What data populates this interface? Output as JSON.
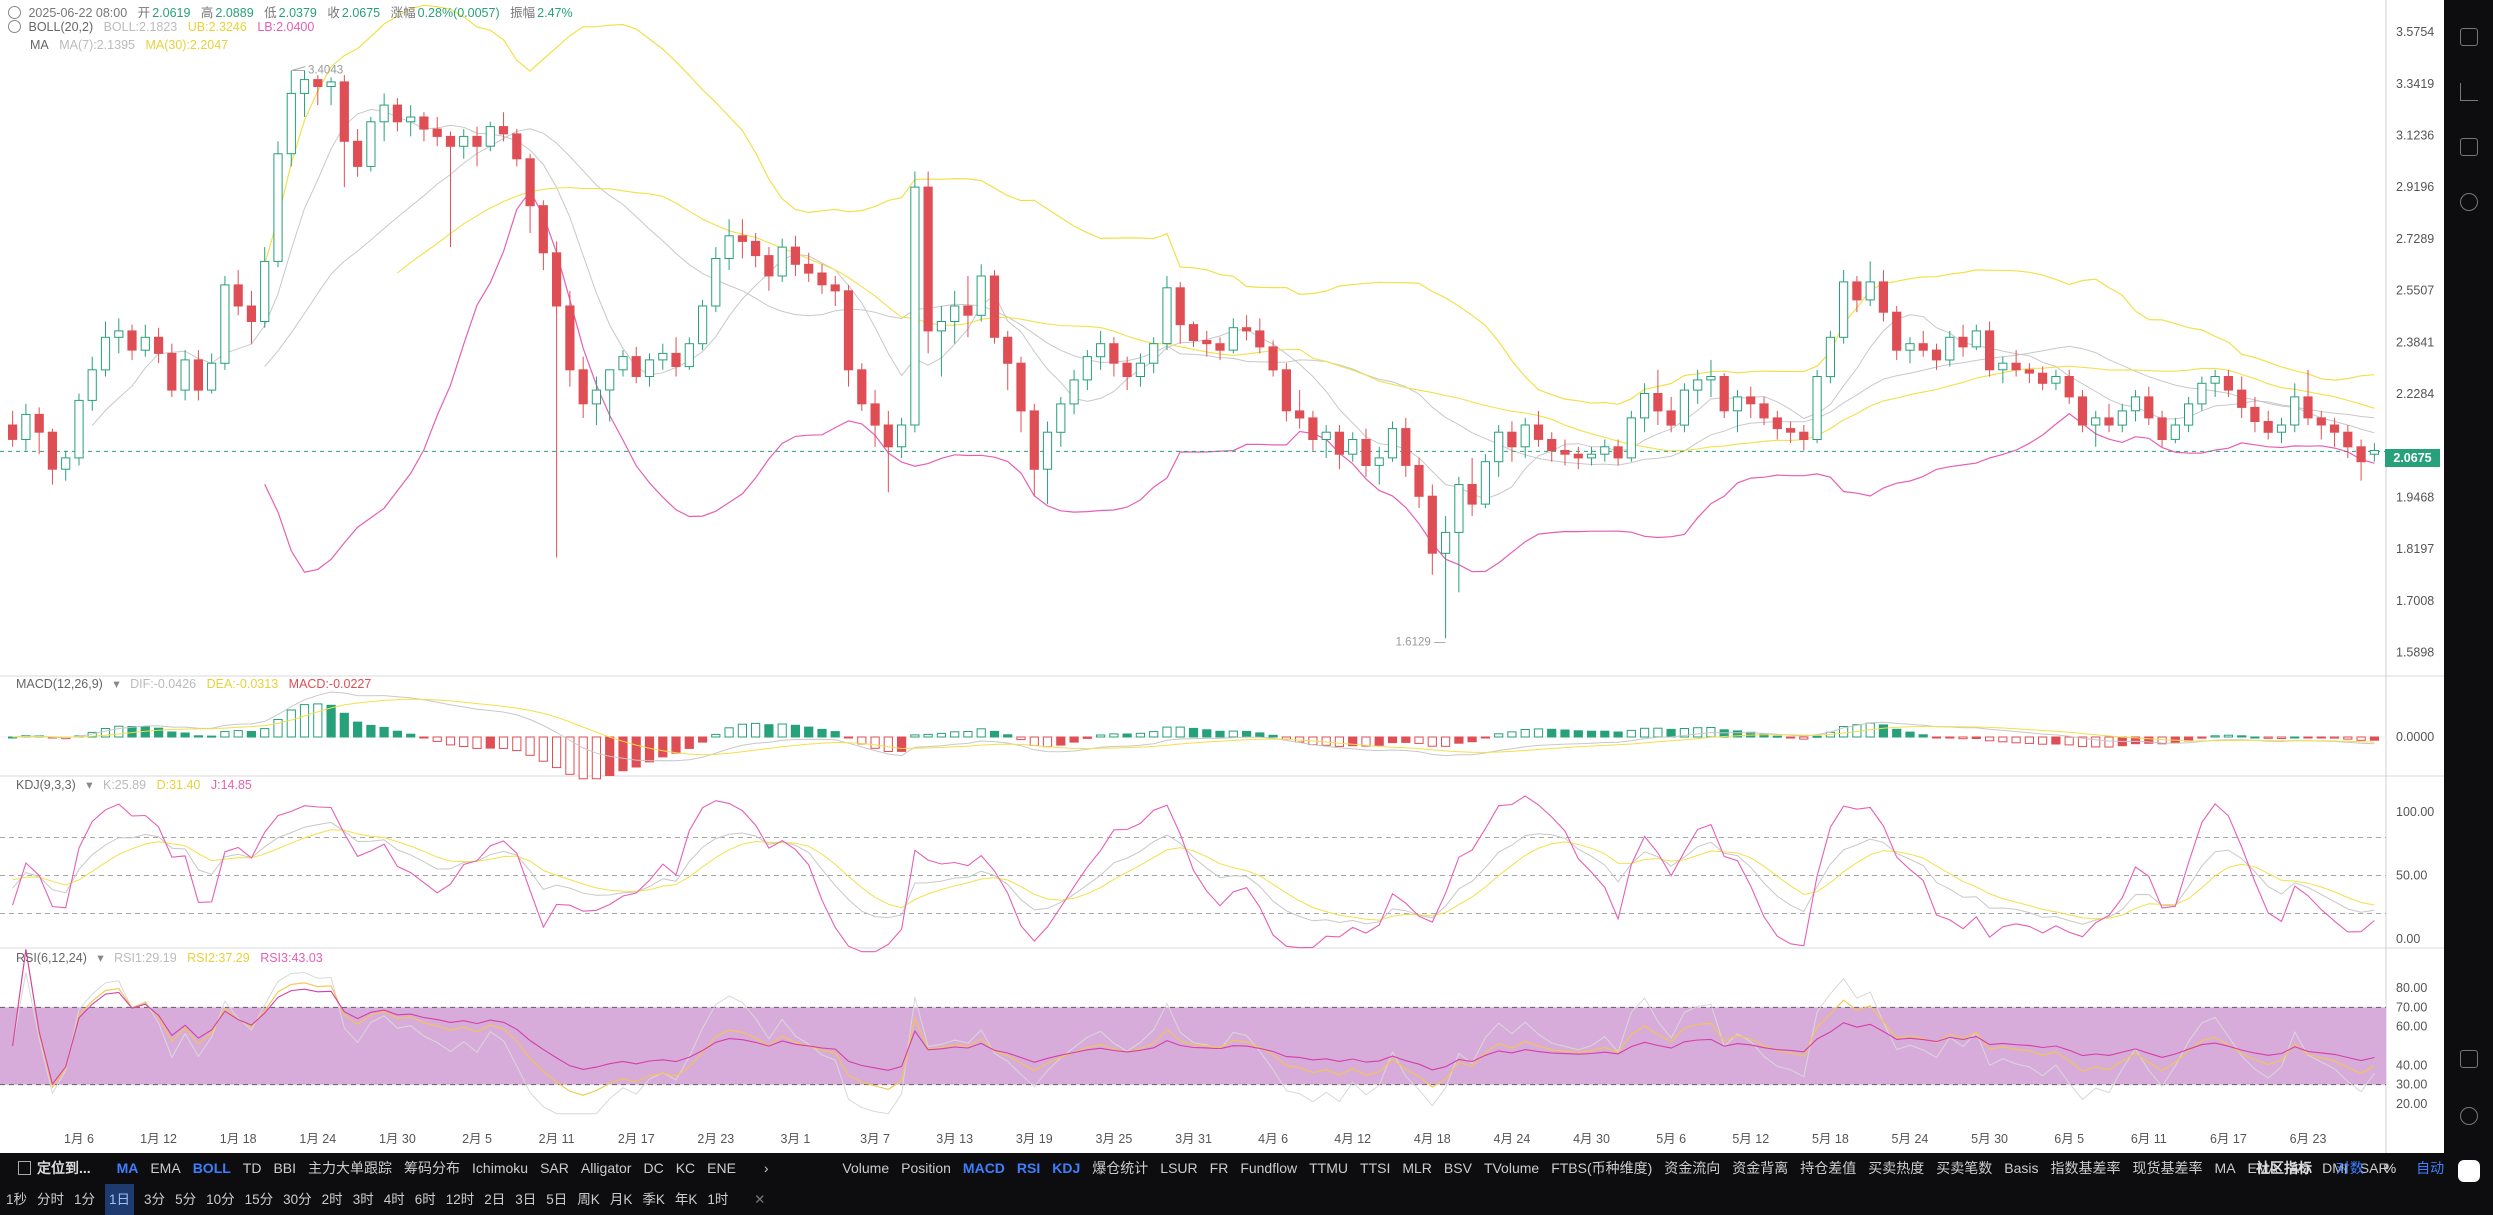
{
  "header": {
    "date": "2025-06-22 08:00",
    "open_label": "开",
    "open": "2.0619",
    "high_label": "高",
    "high": "2.0889",
    "low_label": "低",
    "low": "2.0379",
    "close_label": "收",
    "close": "2.0675",
    "change_label": "涨幅",
    "change": "0.28%(0.0057)",
    "amplitude_label": "振幅",
    "amplitude": "2.47%"
  },
  "indicators": {
    "boll": {
      "name": "BOLL(20,2)",
      "boll": "BOLL:2.1823",
      "ub": "UB:2.3246",
      "lb": "LB:2.0400"
    },
    "ma": {
      "name": "MA",
      "ma7": "MA(7):2.1395",
      "ma30": "MA(30):2.2047"
    },
    "macd": {
      "name": "MACD(12,26,9)",
      "dif": "DIF:-0.0426",
      "dea": "DEA:-0.0313",
      "macd": "MACD:-0.0227"
    },
    "kdj": {
      "name": "KDJ(9,3,3)",
      "k": "K:25.89",
      "d": "D:31.40",
      "j": "J:14.85"
    },
    "rsi": {
      "name": "RSI(6,12,24)",
      "rsi1": "RSI1:29.19",
      "rsi2": "RSI2:37.29",
      "rsi3": "RSI3:43.03"
    }
  },
  "colors": {
    "up": "#26a17a",
    "down": "#df4e54",
    "boll": "#c8c8c8",
    "ub": "#f2e04a",
    "lb": "#e65fb5",
    "ma7": "#c8c8c8",
    "ma30": "#f2e04a",
    "rsi_band": "#d6a8d8",
    "last_price": "#26a17a"
  },
  "price_axis": {
    "ticks": [
      "3.5754",
      "3.3419",
      "3.1236",
      "2.9196",
      "2.7289",
      "2.5507",
      "2.3841",
      "2.2284",
      "2.0675",
      "1.9468",
      "1.8197",
      "1.7008",
      "1.5898"
    ]
  },
  "last_price": "2.0675",
  "annotations": {
    "high": "3.4043",
    "low": "1.6129"
  },
  "macd_axis": [
    "0.0000"
  ],
  "kdj_axis": [
    "100.00",
    "50.00",
    "0.00"
  ],
  "rsi_axis": [
    "80.00",
    "70.00",
    "60.00",
    "40.00",
    "30.00",
    "20.00"
  ],
  "x_axis": [
    "1月 6",
    "1月 12",
    "1月 18",
    "1月 24",
    "1月 30",
    "2月 5",
    "2月 11",
    "2月 17",
    "2月 23",
    "3月 1",
    "3月 7",
    "3月 13",
    "3月 19",
    "3月 25",
    "3月 31",
    "4月 6",
    "4月 12",
    "4月 18",
    "4月 24",
    "4月 30",
    "5月 6",
    "5月 12",
    "5月 18",
    "5月 24",
    "5月 30",
    "6月 5",
    "6月 11",
    "6月 17",
    "6月 23"
  ],
  "indicator_bar": {
    "locate": "定位到...",
    "main": [
      "MA",
      "EMA",
      "BOLL",
      "TD",
      "BBI",
      "主力大单跟踪",
      "筹码分布",
      "Ichimoku",
      "SAR",
      "Alligator",
      "DC",
      "KC",
      "ENE"
    ],
    "sub": [
      "Volume",
      "Position",
      "MACD",
      "RSI",
      "KDJ",
      "爆仓统计",
      "LSUR",
      "FR",
      "Fundflow",
      "TTMU",
      "TTSI",
      "MLR",
      "BSV",
      "TVolume",
      "FTBS(币种维度)",
      "资金流向",
      "资金背离",
      "持仓差值",
      "买卖热度",
      "买卖笔数",
      "Basis",
      "指数基差率",
      "现货基差率",
      "MA",
      "EMA",
      "AO",
      "DMI",
      "SAR"
    ],
    "community": "社区指标",
    "log": "对数",
    "pct": "%",
    "auto": "自动"
  },
  "timeframes": [
    "1秒",
    "分时",
    "1分",
    "1日",
    "3分",
    "5分",
    "10分",
    "15分",
    "30分",
    "2时",
    "3时",
    "4时",
    "6时",
    "12时",
    "2日",
    "3日",
    "5日",
    "周K",
    "月K",
    "季K",
    "年K",
    "1时"
  ],
  "chart_data": {
    "type": "candlestick",
    "symbol_interval": "1D",
    "dates_start": "2025-01-01",
    "dates_end": "2025-06-22",
    "y_scale": "log",
    "ylim": [
      1.55,
      3.68
    ],
    "candles": [
      [
        2.14,
        2.18,
        2.08,
        2.1
      ],
      [
        2.1,
        2.2,
        2.07,
        2.17
      ],
      [
        2.17,
        2.19,
        2.06,
        2.12
      ],
      [
        2.12,
        2.13,
        1.98,
        2.02
      ],
      [
        2.02,
        2.07,
        1.99,
        2.05
      ],
      [
        2.05,
        2.23,
        2.03,
        2.21
      ],
      [
        2.21,
        2.34,
        2.18,
        2.3
      ],
      [
        2.3,
        2.45,
        2.28,
        2.4
      ],
      [
        2.4,
        2.46,
        2.35,
        2.42
      ],
      [
        2.42,
        2.44,
        2.33,
        2.36
      ],
      [
        2.36,
        2.44,
        2.34,
        2.4
      ],
      [
        2.4,
        2.43,
        2.32,
        2.35
      ],
      [
        2.35,
        2.38,
        2.22,
        2.24
      ],
      [
        2.24,
        2.36,
        2.21,
        2.33
      ],
      [
        2.33,
        2.36,
        2.21,
        2.24
      ],
      [
        2.24,
        2.35,
        2.23,
        2.32
      ],
      [
        2.32,
        2.6,
        2.3,
        2.57
      ],
      [
        2.57,
        2.62,
        2.47,
        2.5
      ],
      [
        2.5,
        2.55,
        2.38,
        2.45
      ],
      [
        2.45,
        2.7,
        2.43,
        2.65
      ],
      [
        2.65,
        3.1,
        2.63,
        3.05
      ],
      [
        3.05,
        3.4,
        3.0,
        3.3
      ],
      [
        3.3,
        3.4,
        3.2,
        3.36
      ],
      [
        3.36,
        3.38,
        3.25,
        3.33
      ],
      [
        3.33,
        3.37,
        3.25,
        3.35
      ],
      [
        3.35,
        3.38,
        2.92,
        3.1
      ],
      [
        3.1,
        3.15,
        2.96,
        3.0
      ],
      [
        3.0,
        3.2,
        2.98,
        3.18
      ],
      [
        3.18,
        3.3,
        3.1,
        3.25
      ],
      [
        3.25,
        3.28,
        3.14,
        3.18
      ],
      [
        3.18,
        3.25,
        3.12,
        3.2
      ],
      [
        3.2,
        3.22,
        3.1,
        3.15
      ],
      [
        3.15,
        3.2,
        3.08,
        3.12
      ],
      [
        3.12,
        3.14,
        2.7,
        3.08
      ],
      [
        3.08,
        3.15,
        3.03,
        3.12
      ],
      [
        3.12,
        3.16,
        3.0,
        3.08
      ],
      [
        3.08,
        3.18,
        3.06,
        3.16
      ],
      [
        3.16,
        3.22,
        3.1,
        3.13
      ],
      [
        3.13,
        3.15,
        3.0,
        3.03
      ],
      [
        3.03,
        3.05,
        2.75,
        2.85
      ],
      [
        2.85,
        2.87,
        2.62,
        2.68
      ],
      [
        2.68,
        2.72,
        1.8,
        2.5
      ],
      [
        2.5,
        2.55,
        2.25,
        2.3
      ],
      [
        2.3,
        2.34,
        2.16,
        2.2
      ],
      [
        2.2,
        2.28,
        2.14,
        2.24
      ],
      [
        2.24,
        2.3,
        2.15,
        2.3
      ],
      [
        2.3,
        2.36,
        2.28,
        2.34
      ],
      [
        2.34,
        2.37,
        2.26,
        2.28
      ],
      [
        2.28,
        2.35,
        2.25,
        2.33
      ],
      [
        2.33,
        2.38,
        2.3,
        2.35
      ],
      [
        2.35,
        2.4,
        2.28,
        2.31
      ],
      [
        2.31,
        2.4,
        2.3,
        2.38
      ],
      [
        2.38,
        2.52,
        2.36,
        2.5
      ],
      [
        2.5,
        2.7,
        2.48,
        2.66
      ],
      [
        2.66,
        2.8,
        2.62,
        2.74
      ],
      [
        2.74,
        2.8,
        2.66,
        2.72
      ],
      [
        2.72,
        2.75,
        2.63,
        2.67
      ],
      [
        2.67,
        2.7,
        2.55,
        2.6
      ],
      [
        2.6,
        2.73,
        2.58,
        2.7
      ],
      [
        2.7,
        2.74,
        2.6,
        2.64
      ],
      [
        2.64,
        2.68,
        2.58,
        2.61
      ],
      [
        2.61,
        2.64,
        2.54,
        2.57
      ],
      [
        2.57,
        2.6,
        2.5,
        2.55
      ],
      [
        2.55,
        2.57,
        2.25,
        2.3
      ],
      [
        2.3,
        2.32,
        2.18,
        2.2
      ],
      [
        2.2,
        2.24,
        2.08,
        2.14
      ],
      [
        2.14,
        2.18,
        1.96,
        2.08
      ],
      [
        2.08,
        2.16,
        2.05,
        2.14
      ],
      [
        2.14,
        2.98,
        2.12,
        2.92
      ],
      [
        2.92,
        2.98,
        2.35,
        2.42
      ],
      [
        2.42,
        2.5,
        2.28,
        2.45
      ],
      [
        2.45,
        2.55,
        2.38,
        2.5
      ],
      [
        2.5,
        2.6,
        2.4,
        2.47
      ],
      [
        2.47,
        2.64,
        2.45,
        2.6
      ],
      [
        2.6,
        2.62,
        2.38,
        2.4
      ],
      [
        2.4,
        2.42,
        2.24,
        2.32
      ],
      [
        2.32,
        2.34,
        2.12,
        2.18
      ],
      [
        2.18,
        2.2,
        1.95,
        2.02
      ],
      [
        2.02,
        2.15,
        1.93,
        2.12
      ],
      [
        2.12,
        2.22,
        2.08,
        2.2
      ],
      [
        2.2,
        2.3,
        2.17,
        2.27
      ],
      [
        2.27,
        2.36,
        2.24,
        2.34
      ],
      [
        2.34,
        2.42,
        2.3,
        2.38
      ],
      [
        2.38,
        2.4,
        2.28,
        2.32
      ],
      [
        2.32,
        2.34,
        2.24,
        2.28
      ],
      [
        2.28,
        2.35,
        2.25,
        2.32
      ],
      [
        2.32,
        2.4,
        2.29,
        2.38
      ],
      [
        2.38,
        2.6,
        2.36,
        2.56
      ],
      [
        2.56,
        2.58,
        2.38,
        2.44
      ],
      [
        2.44,
        2.45,
        2.37,
        2.39
      ],
      [
        2.39,
        2.42,
        2.34,
        2.38
      ],
      [
        2.38,
        2.4,
        2.33,
        2.36
      ],
      [
        2.36,
        2.46,
        2.35,
        2.43
      ],
      [
        2.43,
        2.47,
        2.39,
        2.42
      ],
      [
        2.42,
        2.46,
        2.35,
        2.37
      ],
      [
        2.37,
        2.39,
        2.28,
        2.3
      ],
      [
        2.3,
        2.32,
        2.15,
        2.18
      ],
      [
        2.18,
        2.24,
        2.13,
        2.16
      ],
      [
        2.16,
        2.18,
        2.07,
        2.1
      ],
      [
        2.1,
        2.14,
        2.05,
        2.12
      ],
      [
        2.12,
        2.14,
        2.02,
        2.06
      ],
      [
        2.06,
        2.12,
        2.04,
        2.1
      ],
      [
        2.1,
        2.13,
        2.0,
        2.03
      ],
      [
        2.03,
        2.08,
        1.98,
        2.05
      ],
      [
        2.05,
        2.15,
        2.04,
        2.13
      ],
      [
        2.13,
        2.16,
        2.0,
        2.03
      ],
      [
        2.03,
        2.05,
        1.92,
        1.95
      ],
      [
        1.95,
        1.98,
        1.76,
        1.81
      ],
      [
        1.81,
        1.9,
        1.62,
        1.86
      ],
      [
        1.86,
        2.0,
        1.72,
        1.98
      ],
      [
        1.98,
        2.05,
        1.9,
        1.93
      ],
      [
        1.93,
        2.06,
        1.92,
        2.04
      ],
      [
        2.04,
        2.14,
        2.0,
        2.12
      ],
      [
        2.12,
        2.15,
        2.04,
        2.08
      ],
      [
        2.08,
        2.16,
        2.05,
        2.14
      ],
      [
        2.14,
        2.18,
        2.08,
        2.1
      ],
      [
        2.1,
        2.12,
        2.04,
        2.07
      ],
      [
        2.07,
        2.1,
        2.03,
        2.06
      ],
      [
        2.06,
        2.08,
        2.02,
        2.05
      ],
      [
        2.05,
        2.08,
        2.03,
        2.06
      ],
      [
        2.06,
        2.1,
        2.04,
        2.08
      ],
      [
        2.08,
        2.1,
        2.03,
        2.05
      ],
      [
        2.05,
        2.18,
        2.04,
        2.16
      ],
      [
        2.16,
        2.26,
        2.12,
        2.23
      ],
      [
        2.23,
        2.3,
        2.14,
        2.18
      ],
      [
        2.18,
        2.22,
        2.12,
        2.14
      ],
      [
        2.14,
        2.26,
        2.12,
        2.24
      ],
      [
        2.24,
        2.3,
        2.2,
        2.27
      ],
      [
        2.27,
        2.33,
        2.22,
        2.28
      ],
      [
        2.28,
        2.29,
        2.16,
        2.18
      ],
      [
        2.18,
        2.24,
        2.12,
        2.22
      ],
      [
        2.22,
        2.25,
        2.16,
        2.2
      ],
      [
        2.2,
        2.22,
        2.14,
        2.16
      ],
      [
        2.16,
        2.18,
        2.1,
        2.13
      ],
      [
        2.13,
        2.15,
        2.09,
        2.12
      ],
      [
        2.12,
        2.14,
        2.07,
        2.1
      ],
      [
        2.1,
        2.3,
        2.09,
        2.28
      ],
      [
        2.28,
        2.42,
        2.26,
        2.4
      ],
      [
        2.4,
        2.62,
        2.38,
        2.58
      ],
      [
        2.58,
        2.6,
        2.48,
        2.52
      ],
      [
        2.52,
        2.65,
        2.5,
        2.58
      ],
      [
        2.58,
        2.62,
        2.45,
        2.48
      ],
      [
        2.48,
        2.5,
        2.33,
        2.36
      ],
      [
        2.36,
        2.4,
        2.32,
        2.38
      ],
      [
        2.38,
        2.42,
        2.34,
        2.36
      ],
      [
        2.36,
        2.38,
        2.3,
        2.33
      ],
      [
        2.33,
        2.42,
        2.31,
        2.4
      ],
      [
        2.4,
        2.44,
        2.34,
        2.37
      ],
      [
        2.37,
        2.44,
        2.36,
        2.42
      ],
      [
        2.42,
        2.45,
        2.28,
        2.3
      ],
      [
        2.3,
        2.34,
        2.26,
        2.32
      ],
      [
        2.32,
        2.36,
        2.28,
        2.3
      ],
      [
        2.3,
        2.32,
        2.26,
        2.29
      ],
      [
        2.29,
        2.31,
        2.24,
        2.26
      ],
      [
        2.26,
        2.3,
        2.24,
        2.28
      ],
      [
        2.28,
        2.3,
        2.2,
        2.22
      ],
      [
        2.22,
        2.24,
        2.12,
        2.14
      ],
      [
        2.14,
        2.18,
        2.08,
        2.16
      ],
      [
        2.16,
        2.2,
        2.12,
        2.14
      ],
      [
        2.14,
        2.2,
        2.12,
        2.18
      ],
      [
        2.18,
        2.24,
        2.15,
        2.22
      ],
      [
        2.22,
        2.25,
        2.14,
        2.16
      ],
      [
        2.16,
        2.18,
        2.08,
        2.1
      ],
      [
        2.1,
        2.16,
        2.09,
        2.14
      ],
      [
        2.14,
        2.22,
        2.12,
        2.2
      ],
      [
        2.2,
        2.28,
        2.18,
        2.26
      ],
      [
        2.26,
        2.3,
        2.22,
        2.28
      ],
      [
        2.28,
        2.3,
        2.22,
        2.24
      ],
      [
        2.24,
        2.28,
        2.16,
        2.19
      ],
      [
        2.19,
        2.22,
        2.12,
        2.15
      ],
      [
        2.15,
        2.18,
        2.1,
        2.12
      ],
      [
        2.12,
        2.16,
        2.09,
        2.14
      ],
      [
        2.14,
        2.26,
        2.12,
        2.22
      ],
      [
        2.22,
        2.3,
        2.14,
        2.16
      ],
      [
        2.16,
        2.18,
        2.1,
        2.14
      ],
      [
        2.14,
        2.16,
        2.08,
        2.12
      ],
      [
        2.12,
        2.14,
        2.05,
        2.08
      ],
      [
        2.08,
        2.1,
        1.99,
        2.04
      ],
      [
        2.06,
        2.09,
        2.04,
        2.07
      ]
    ]
  }
}
